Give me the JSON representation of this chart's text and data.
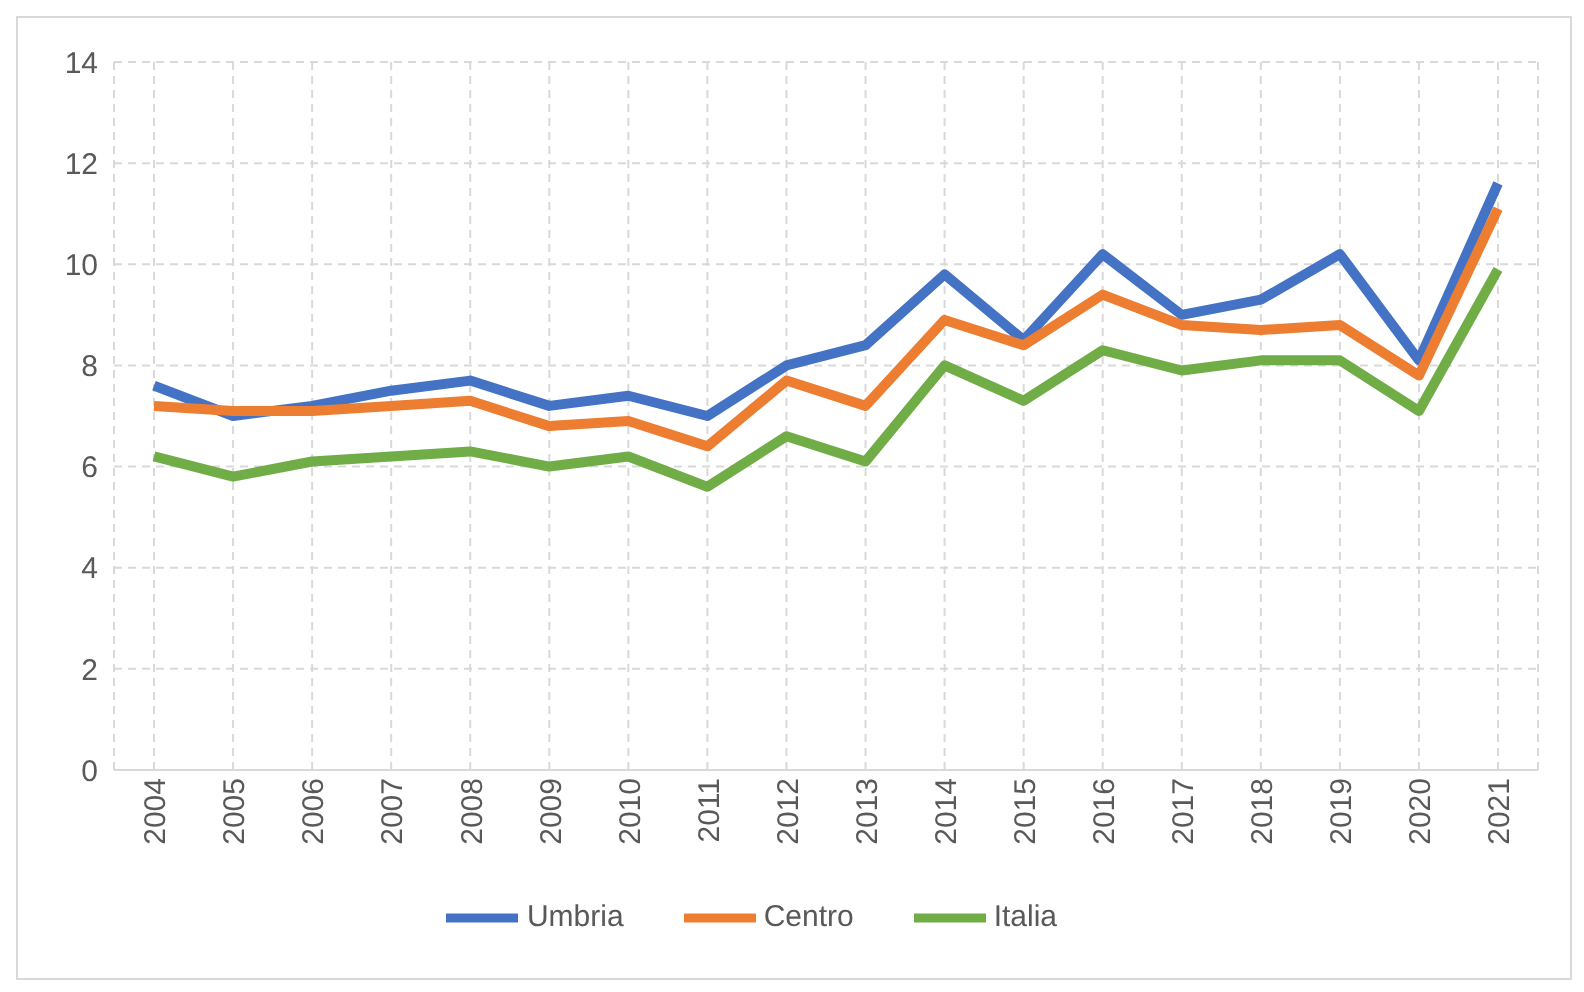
{
  "chart_data": {
    "type": "line",
    "categories": [
      "2004",
      "2005",
      "2006",
      "2007",
      "2008",
      "2009",
      "2010",
      "2011",
      "2012",
      "2013",
      "2014",
      "2015",
      "2016",
      "2017",
      "2018",
      "2019",
      "2020",
      "2021"
    ],
    "series": [
      {
        "name": "Umbria",
        "color": "#4472c4",
        "values": [
          7.6,
          7.0,
          7.2,
          7.5,
          7.7,
          7.2,
          7.4,
          7.0,
          8.0,
          8.4,
          9.8,
          8.5,
          10.2,
          9.0,
          9.3,
          10.2,
          8.1,
          11.6
        ]
      },
      {
        "name": "Centro",
        "color": "#ed7d31",
        "values": [
          7.2,
          7.1,
          7.1,
          7.2,
          7.3,
          6.8,
          6.9,
          6.4,
          7.7,
          7.2,
          8.9,
          8.4,
          9.4,
          8.8,
          8.7,
          8.8,
          7.8,
          11.1
        ]
      },
      {
        "name": "Italia",
        "color": "#70ad47",
        "values": [
          6.2,
          5.8,
          6.1,
          6.2,
          6.3,
          6.0,
          6.2,
          5.6,
          6.6,
          6.1,
          8.0,
          7.3,
          8.3,
          7.9,
          8.1,
          8.1,
          7.1,
          9.9
        ]
      }
    ],
    "ylim": [
      0,
      14
    ],
    "yticks": [
      0,
      2,
      4,
      6,
      8,
      10,
      12,
      14
    ],
    "grid": true,
    "legend": "bottom",
    "marker": "none",
    "line_style": "solid"
  }
}
